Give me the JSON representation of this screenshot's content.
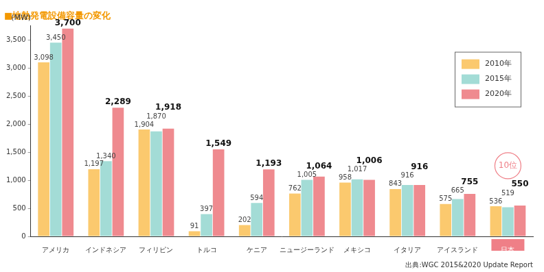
{
  "chart_data": {
    "type": "bar",
    "title": "■地熱発電設備容量の変化",
    "y_label": "(MW)",
    "categories": [
      "アメリカ",
      "インドネシア",
      "フィリピン",
      "トルコ",
      "ケニア",
      "ニュージーランド",
      "メキシコ",
      "イタリア",
      "アイスランド",
      "日本"
    ],
    "series": [
      {
        "name": "2010年",
        "color": "#fbc96e",
        "values": [
          3098,
          1197,
          1904,
          91,
          202,
          762,
          958,
          843,
          575,
          536
        ],
        "value_labels": [
          "3,098",
          "1,197",
          "1,904",
          "91",
          "202",
          "762",
          "958",
          "843",
          "575",
          "536"
        ]
      },
      {
        "name": "2015年",
        "color": "#a3dcd6",
        "values": [
          3450,
          1340,
          1870,
          397,
          594,
          1005,
          1017,
          916,
          665,
          519
        ],
        "value_labels": [
          "3,450",
          "1,340",
          "1,870",
          "397",
          "594",
          "1,005",
          "1,017",
          "916",
          "665",
          "519"
        ]
      },
      {
        "name": "2020年",
        "color": "#ef8a8f",
        "values": [
          3700,
          2289,
          1918,
          1549,
          1193,
          1064,
          1006,
          916,
          755,
          550
        ],
        "value_labels": [
          "3,700",
          "2,289",
          "1,918",
          "1,549",
          "1,193",
          "1,064",
          "1,006",
          "916",
          "755",
          "550"
        ]
      }
    ],
    "ylim": [
      0,
      3750
    ],
    "yticks": [
      0,
      500,
      {
        "value": 1000,
        "label": "1,000"
      },
      {
        "value": 1500,
        "label": "1,500"
      },
      {
        "value": 2000,
        "label": "2,000"
      },
      {
        "value": 2500,
        "label": "2,500"
      },
      {
        "value": 3000,
        "label": "3,000"
      },
      {
        "value": 3500,
        "label": "3,500"
      }
    ],
    "grid": false,
    "legend": "top-right",
    "data_labels": true,
    "annotations": [
      {
        "text": "10位",
        "category": "日本"
      }
    ],
    "source": "出典:WGC 2015&2020 Update Report"
  }
}
